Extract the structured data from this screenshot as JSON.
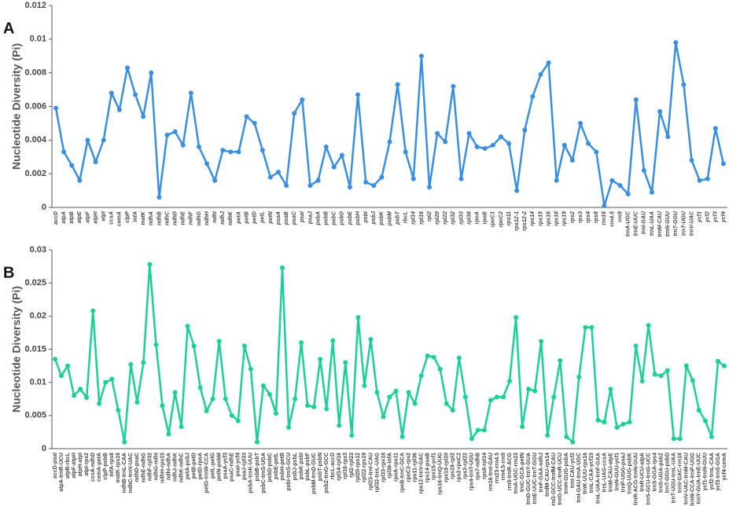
{
  "chart_data": [
    {
      "type": "line",
      "title": "A",
      "y_label": "Nucleotide Diversity (Pi)",
      "color": "#3a8ee0",
      "italic": true,
      "categories": [
        "accD",
        "atpA",
        "atpB",
        "atpE",
        "atpF",
        "atpH",
        "atpI",
        "ccsA",
        "cemA",
        "clpP",
        "infA",
        "matK",
        "ndhA",
        "ndhB",
        "ndhC",
        "ndhD",
        "ndhE",
        "ndhF",
        "ndhG",
        "ndhH",
        "ndhI",
        "ndhJ",
        "ndhK",
        "petA",
        "petB",
        "petD",
        "petL",
        "petN",
        "psaA",
        "psaB",
        "psaC",
        "psaI",
        "psaJ",
        "psbA",
        "psbB",
        "psbC",
        "psbD",
        "psbE",
        "psbH",
        "psbI",
        "psbJ",
        "psbK",
        "psbM",
        "psbT",
        "rbcL",
        "rpl14",
        "rpl16",
        "rpl2",
        "rpl20",
        "rpl22",
        "rpl32",
        "rpl33",
        "rpl36",
        "rpoA",
        "rpoB",
        "rpoC1",
        "rpoC2",
        "rps11",
        "rps12-1",
        "rps12-2",
        "rps14",
        "rps15",
        "rps16",
        "rps18",
        "rps19",
        "rps2",
        "rps3",
        "rps4",
        "rps8",
        "rrn16",
        "rrn4.5",
        "rrn5",
        "trnA-UGC",
        "trnE-UUC",
        "trnI-GAU",
        "trnL-UAA",
        "trnM-CAU",
        "trnN-GUU",
        "trnT-GGU",
        "trnT-UGU",
        "trnV-UAC",
        "ycf1",
        "ycf2",
        "ycf3",
        "ycf4"
      ],
      "values": [
        0.0059,
        0.0033,
        0.0025,
        0.0016,
        0.004,
        0.0027,
        0.004,
        0.0068,
        0.0058,
        0.0083,
        0.0067,
        0.0054,
        0.008,
        0.0006,
        0.0043,
        0.0045,
        0.0037,
        0.0068,
        0.0036,
        0.0026,
        0.0016,
        0.0034,
        0.0033,
        0.0033,
        0.0054,
        0.005,
        0.0034,
        0.0018,
        0.0021,
        0.0013,
        0.0056,
        0.0064,
        0.0013,
        0.0016,
        0.0036,
        0.0024,
        0.0031,
        0.0012,
        0.0067,
        0.0015,
        0.0013,
        0.0018,
        0.0039,
        0.0073,
        0.0033,
        0.0017,
        0.009,
        0.0012,
        0.0044,
        0.0039,
        0.0072,
        0.0017,
        0.0044,
        0.0036,
        0.0035,
        0.0037,
        0.0042,
        0.0038,
        0.001,
        0.0046,
        0.0066,
        0.0079,
        0.0086,
        0.0016,
        0.0037,
        0.0028,
        0.005,
        0.0038,
        0.0033,
        0.0001,
        0.0016,
        0.0013,
        0.0008,
        0.0064,
        0.0022,
        0.0009,
        0.0057,
        0.0042,
        0.0098,
        0.0073,
        0.0028,
        0.0016,
        0.0017,
        0.0047,
        0.0026
      ],
      "ylim": [
        0,
        0.012
      ],
      "yticks": [
        0,
        0.002,
        0.004,
        0.006,
        0.008,
        0.01,
        0.012
      ],
      "grid": false
    },
    {
      "type": "line",
      "title": "B",
      "y_label": "Nucleotide Diversity (Pi)",
      "color": "#1ccf98",
      "italic": false,
      "categories": [
        "accD-psaI",
        "atpA-trnR-UCU",
        "atpB-rbcL",
        "atpF-atpH",
        "atpH-atpI",
        "atpI-rps2",
        "ccsA-ndhD",
        "cemA-petA",
        "clpP-psbB",
        "infA-rps8",
        "matK-rps16",
        "ndhB-trnL-CAA",
        "ndhC-trnV-UAC",
        "ndhD-psaC",
        "ndhE-ndhG",
        "ndhF-rpl32",
        "ndhG-ndhI",
        "ndhH-rps15",
        "ndhI-ndhA",
        "ndhJ-ndhK",
        "ndhK-ndhC",
        "petA-psbJ",
        "petB-petD",
        "petD-rpoA",
        "petG-trnW-CCA",
        "petL-petG",
        "petN-psbM",
        "psaA-ycf3",
        "psaC-ndhE",
        "psaI-ycf4",
        "psaJ-rpl33",
        "psbA-trnK-UUU",
        "psbB-psbT",
        "psbC-trnS-UGA",
        "psbD-psbC",
        "psbE-petL",
        "psbH-petB",
        "psbI-trnS-GCU",
        "psbJ-psbL",
        "psbK-psbI",
        "psbL-psbF",
        "psbM-trnD-GUC",
        "psbT-psbN",
        "psbZ-trnG-GCC",
        "rbcL-accD",
        "rpl14-rpl16",
        "rpl16-rps3",
        "rpl2-rpl23",
        "rpl20-rps12",
        "rpl22-rps19",
        "rpl23-trnI-CAU",
        "rpl32-trnL-UAG",
        "rpl33-rps18",
        "rpl36-infA",
        "rpoA-rps11",
        "rpoB-trnC-GCA",
        "rpoC2-rps2",
        "rps11-rpl36",
        "rps12-trnV-GAC",
        "rps14-psaB",
        "rps15-ycf1",
        "rps16-trnQ-UUG",
        "rps18-rpl20",
        "rps19-rpl2",
        "rps2-rpoC2",
        "rps3-rpl22",
        "rps4-trnT-UGU",
        "rps7-ndhB",
        "rps8-rpl14",
        "rrn16-trnI-GAU",
        "rrn23-rrn4.5",
        "rrn4.5-rrn5",
        "rrn5-trnR-ACG",
        "trnA-UGC-rrn23",
        "trnC-GCA-petN",
        "trnD-GUC-trnY-GUA",
        "trnE-UUC-trnT-GGU",
        "trnF-GAA-ndhJ",
        "trnfM-CAU-rps14",
        "trnG-GCC-trnfM-CAU",
        "trnG-UCC-trnR-UCU",
        "trnH-GUG-psbA",
        "trnI-CAU-ycf2",
        "trnI-GAU-trnA-UGC",
        "trnK-UUU-rps16",
        "trnL-CAA-ycf15",
        "trnL-UAA-trnF-GAA",
        "trnL-UAG-ccsA",
        "trnM-CAU-atpE",
        "trnN-GUU-ycf1",
        "trnP-UGG-psaJ",
        "trnQ-UUG-psbK",
        "trnR-ACG-trnN-GUU",
        "trnR-UCU-atpA",
        "trnS-GCU-trnG-UCC",
        "trnS-GGA-rps4",
        "trnS-UGA-psbZ",
        "trnT-GGU-psbD",
        "trnT-UGU-trnL-UAA",
        "trnV-GAC-rrn16",
        "trnV-UAC-trnM-CAU",
        "trnW-CCA-trnP-UGG",
        "trnY-GUA-trnE-UUC",
        "ycf1-trnN-GUU",
        "ycf2-trnL-CAA",
        "ycf3-trnS-GGA",
        "ycf4-cemA"
      ],
      "values": [
        0.0135,
        0.011,
        0.0125,
        0.008,
        0.009,
        0.0077,
        0.0208,
        0.0068,
        0.01,
        0.0105,
        0.0058,
        0.001,
        0.0127,
        0.007,
        0.013,
        0.0278,
        0.0157,
        0.0065,
        0.0022,
        0.0085,
        0.0033,
        0.0185,
        0.0155,
        0.0092,
        0.0057,
        0.0075,
        0.0162,
        0.0075,
        0.005,
        0.0042,
        0.0155,
        0.012,
        0.001,
        0.0095,
        0.0082,
        0.0053,
        0.0273,
        0.0032,
        0.0075,
        0.016,
        0.0065,
        0.0063,
        0.0135,
        0.006,
        0.0163,
        0.0035,
        0.013,
        0.002,
        0.0198,
        0.0095,
        0.0165,
        0.0085,
        0.0048,
        0.0078,
        0.0087,
        0.0018,
        0.0085,
        0.0068,
        0.011,
        0.014,
        0.0138,
        0.012,
        0.0068,
        0.0058,
        0.0137,
        0.0078,
        0.0015,
        0.0028,
        0.0028,
        0.0073,
        0.0078,
        0.0078,
        0.0102,
        0.0198,
        0.0033,
        0.009,
        0.0087,
        0.0162,
        0.002,
        0.0078,
        0.0133,
        0.0018,
        0.001,
        0.0108,
        0.0183,
        0.0183,
        0.0043,
        0.004,
        0.009,
        0.0032,
        0.0037,
        0.004,
        0.0155,
        0.0102,
        0.0186,
        0.0112,
        0.011,
        0.0118,
        0.0015,
        0.0015,
        0.0125,
        0.0103,
        0.0058,
        0.0042,
        0.0018,
        0.0132,
        0.0125
      ],
      "ylim": [
        0,
        0.03
      ],
      "yticks": [
        0,
        0.005,
        0.01,
        0.015,
        0.02,
        0.025,
        0.03
      ],
      "grid": false
    }
  ]
}
